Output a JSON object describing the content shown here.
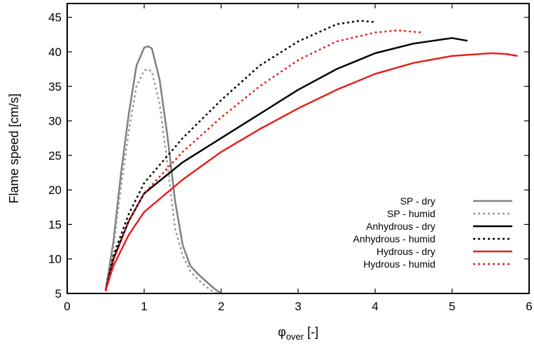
{
  "chart_data": {
    "type": "line",
    "title": "",
    "xlabel_main": "φ",
    "xlabel_sub": "over",
    "xlabel_unit": " [-]",
    "ylabel": "Flame speed [cm/s]",
    "xlim": [
      0,
      6
    ],
    "ylim": [
      5,
      47
    ],
    "xticks": [
      0,
      1,
      2,
      3,
      4,
      5,
      6
    ],
    "yticks": [
      5,
      10,
      15,
      20,
      25,
      30,
      35,
      40,
      45
    ],
    "grid": false,
    "legend_position": "bottom-right",
    "series": [
      {
        "name": "SP - dry",
        "color": "#808080",
        "dash": "solid",
        "x": [
          0.5,
          0.6,
          0.7,
          0.8,
          0.9,
          1.0,
          1.05,
          1.1,
          1.2,
          1.3,
          1.4,
          1.5,
          1.6,
          1.7,
          1.8,
          1.9,
          2.0
        ],
        "y": [
          5.5,
          12.5,
          22.5,
          31.0,
          38.0,
          40.6,
          40.8,
          40.5,
          36.0,
          28.0,
          18.5,
          12.0,
          9.0,
          7.8,
          6.8,
          5.8,
          5.0
        ]
      },
      {
        "name": "SP - humid",
        "color": "#999999",
        "dash": "dotted",
        "x": [
          0.5,
          0.6,
          0.7,
          0.8,
          0.9,
          1.0,
          1.05,
          1.1,
          1.2,
          1.3,
          1.4,
          1.5,
          1.6,
          1.7,
          1.8,
          1.9,
          2.0
        ],
        "y": [
          5.3,
          11.5,
          20.5,
          28.5,
          35.0,
          37.3,
          37.5,
          37.1,
          32.5,
          24.0,
          14.5,
          10.5,
          8.2,
          7.0,
          6.0,
          5.2,
          4.8
        ]
      },
      {
        "name": "Anhydrous - dry",
        "color": "#000000",
        "dash": "solid",
        "x": [
          0.5,
          0.6,
          0.8,
          1.0,
          1.5,
          2.0,
          2.5,
          3.0,
          3.5,
          4.0,
          4.5,
          5.0,
          5.2
        ],
        "y": [
          5.5,
          10.0,
          15.5,
          19.5,
          24.0,
          27.5,
          31.0,
          34.5,
          37.5,
          39.8,
          41.2,
          42.0,
          41.6
        ]
      },
      {
        "name": "Anhydrous - humid",
        "color": "#000000",
        "dash": "dotted",
        "x": [
          0.5,
          0.6,
          0.8,
          1.0,
          1.5,
          2.0,
          2.5,
          3.0,
          3.5,
          3.8,
          4.0
        ],
        "y": [
          5.5,
          10.5,
          16.5,
          21.0,
          27.5,
          33.0,
          38.0,
          41.5,
          44.0,
          44.5,
          44.3
        ]
      },
      {
        "name": "Hydrous - dry",
        "color": "#e8201c",
        "dash": "solid",
        "x": [
          0.5,
          0.6,
          0.8,
          1.0,
          1.5,
          2.0,
          2.5,
          3.0,
          3.5,
          4.0,
          4.5,
          5.0,
          5.5,
          5.7,
          5.85
        ],
        "y": [
          5.5,
          9.0,
          13.5,
          16.8,
          21.5,
          25.5,
          28.8,
          31.8,
          34.5,
          36.8,
          38.4,
          39.4,
          39.8,
          39.7,
          39.4
        ]
      },
      {
        "name": "Hydrous - humid",
        "color": "#e8201c",
        "dash": "dotted",
        "x": [
          0.5,
          0.6,
          0.8,
          1.0,
          1.5,
          2.0,
          2.5,
          3.0,
          3.5,
          4.0,
          4.3,
          4.6
        ],
        "y": [
          5.3,
          9.8,
          15.5,
          19.5,
          25.5,
          30.5,
          35.0,
          38.8,
          41.5,
          42.8,
          43.1,
          42.8
        ]
      }
    ]
  }
}
